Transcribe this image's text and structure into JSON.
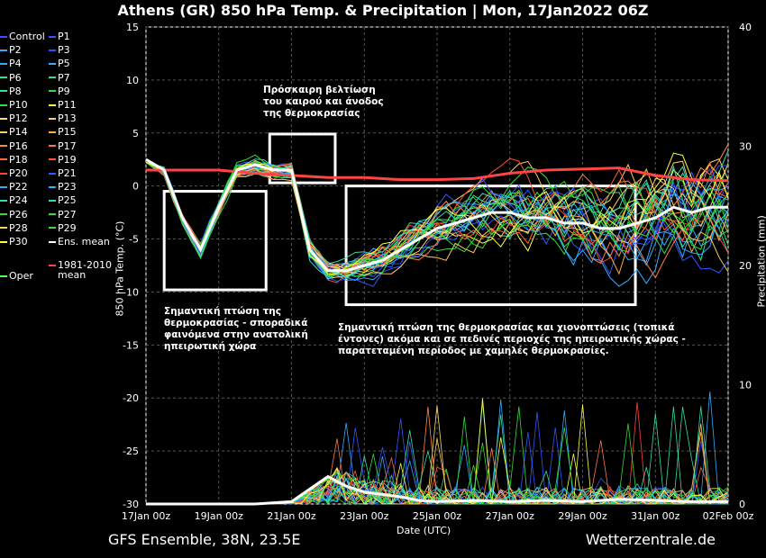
{
  "chart_data": {
    "type": "line",
    "title": "Athens  (GR)  850 hPa Temp. & Precipitation | Mon, 17Jan2022 06Z",
    "xlabel": "Date (UTC)",
    "ylabel_left": "850 hPa Temp. (°C)",
    "ylabel_right": "Precipitation (mm)",
    "x_ticks": [
      "17Jan 00z",
      "19Jan 00z",
      "21Jan 00z",
      "23Jan 00z",
      "25Jan 00z",
      "27Jan 00z",
      "29Jan 00z",
      "31Jan 00z",
      "02Feb 00z"
    ],
    "x_range_days": [
      0,
      16
    ],
    "ylim_left": [
      -30,
      15
    ],
    "yticks_left": [
      15,
      10,
      5,
      0,
      -5,
      -10,
      -15,
      -20,
      -25,
      -30
    ],
    "ylim_right": [
      0,
      40
    ],
    "yticks_right": [
      40,
      30,
      20,
      10,
      0
    ],
    "grid": true,
    "series_ens_mean_temp": {
      "name": "Ens. mean",
      "x_days": [
        0,
        0.5,
        1,
        1.5,
        2,
        2.5,
        3,
        3.5,
        4,
        4.5,
        5,
        5.5,
        6,
        6.5,
        7,
        7.5,
        8,
        8.5,
        9,
        9.5,
        10,
        10.5,
        11,
        11.5,
        12,
        12.5,
        13,
        13.5,
        14,
        14.5,
        15,
        15.5,
        16
      ],
      "values": [
        2.5,
        1.5,
        -3,
        -6,
        -2,
        1.5,
        2,
        1.5,
        1.5,
        -6,
        -8,
        -8,
        -7.5,
        -7,
        -6,
        -5,
        -4,
        -3.5,
        -3,
        -2.5,
        -2.5,
        -3,
        -3,
        -3.5,
        -3.5,
        -4,
        -4,
        -3.5,
        -3,
        -2,
        -2.5,
        -2,
        -2
      ]
    },
    "series_climate_mean": {
      "name": "1981-2010 mean",
      "x_days": [
        0,
        1,
        2,
        3,
        4,
        5,
        6,
        7,
        8,
        9,
        10,
        11,
        12,
        13,
        14,
        15,
        16
      ],
      "values": [
        1.5,
        1.5,
        1.5,
        1.2,
        1.0,
        0.8,
        0.8,
        0.6,
        0.6,
        0.7,
        1.2,
        1.5,
        1.6,
        1.7,
        1.0,
        0.6,
        0.5
      ]
    },
    "series_ens_mean_precip": {
      "name": "Ens. mean",
      "x_days": [
        0,
        1,
        2,
        3,
        4,
        5,
        5.5,
        6,
        6.5,
        7,
        7.5,
        8,
        9,
        10,
        11,
        12,
        13,
        14,
        15,
        16
      ],
      "values": [
        0,
        0,
        0,
        0,
        0.2,
        2.3,
        1.5,
        1.0,
        0.8,
        0.6,
        0.3,
        0.2,
        0.3,
        0.2,
        0.3,
        0.2,
        0.4,
        0.3,
        0.2,
        0.2
      ]
    },
    "legend": [
      "Control",
      "P1",
      "P2",
      "P3",
      "P4",
      "P5",
      "P6",
      "P7",
      "P8",
      "P9",
      "P10",
      "P11",
      "P12",
      "P13",
      "P14",
      "P15",
      "P16",
      "P17",
      "P18",
      "P19",
      "P20",
      "P21",
      "P22",
      "P23",
      "P24",
      "P25",
      "P26",
      "P27",
      "P28",
      "P29",
      "P30",
      "Ens. mean",
      "1981-2010",
      "mean",
      "Oper"
    ],
    "legend_colors": [
      "#3355ff",
      "#3355ff",
      "#33aaff",
      "#3355ff",
      "#33aaff",
      "#33aaff",
      "#33ddaa",
      "#33ddaa",
      "#33ddaa",
      "#33dd33",
      "#33dd33",
      "#ffff44",
      "#ffdd66",
      "#ffcc66",
      "#ffcc66",
      "#ffaa33",
      "#ff8844",
      "#ff7744",
      "#ff6633",
      "#ff5533",
      "#ff4433",
      "#3355ff",
      "#33aaff",
      "#33aaff",
      "#33ddaa",
      "#33ddaa",
      "#33dd33",
      "#33dd33",
      "#ffcc66",
      "#33dd33",
      "#ffff44",
      "#ffffff",
      "#ff4444",
      "#ff4444",
      "#55ff55"
    ]
  },
  "annotations": [
    {
      "id": "a1",
      "lines": [
        "Πρόσκαιρη βελτίωση",
        "του καιρού και άνοδος",
        "της θερμοκρασίας"
      ]
    },
    {
      "id": "a2",
      "lines": [
        "Σημαντική πτώση της",
        "θερμοκρασίας - σποραδικά",
        "φαινόμενα στην ανατολική",
        "ηπειρωτική χώρα"
      ]
    },
    {
      "id": "a3",
      "lines": [
        "Σημαντική πτώση της θερμοκρασίας και χιονοπτώσεις (τοπικά",
        "έντονες) ακόμα και σε πεδινές περιοχές της ηπειρωτικής χώρας -",
        "παρατεταμένη περίοδος με χαμηλές θερμοκρασίες."
      ]
    }
  ],
  "footer_left": "GFS Ensemble, 38N, 23.5E",
  "footer_right": "Wetterzentrale.de"
}
